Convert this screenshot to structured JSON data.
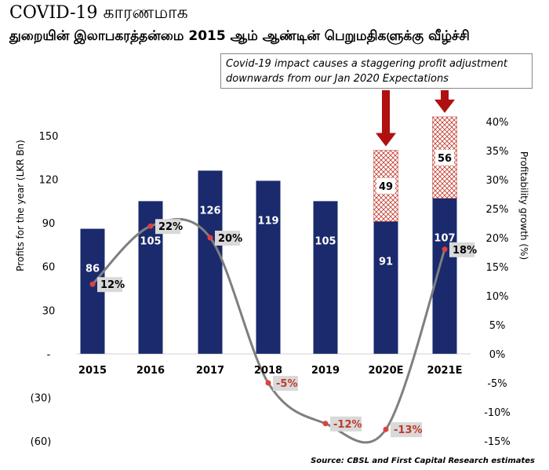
{
  "title_line1": "COVID-19 காரணமாக",
  "title_line2": "துறையின் இலாபகரத்தன்மை 2015 ஆம் ஆண்டின் பெறுமதிகளுக்கு வீழ்ச்சி",
  "callout_text": "Covid-19 impact causes a staggering profit adjustment downwards from our Jan 2020 Expectations",
  "source": "Source: CBSL and First Capital Research estimates",
  "colors": {
    "bar": "#1a2a6c",
    "hatch": "#c0392b",
    "arrow": "#b01010",
    "line": "#7f7f7f",
    "dot": "#e04040",
    "label_bg": "#d9d9d9"
  },
  "chart_data": {
    "type": "bar",
    "categories": [
      "2015",
      "2016",
      "2017",
      "2018",
      "2019",
      "2020E",
      "2021E"
    ],
    "series": [
      {
        "values": [
          86,
          105,
          126,
          119,
          105,
          91,
          107
        ]
      },
      {
        "values": [
          null,
          null,
          null,
          null,
          null,
          49,
          56
        ]
      },
      {
        "type": "line",
        "axis": "right",
        "values": [
          12,
          22,
          20,
          -5,
          -12,
          -13,
          18
        ]
      }
    ],
    "point_labels": [
      "12%",
      "22%",
      "20%",
      "-5%",
      "-12%",
      "-13%",
      "18%"
    ],
    "ylabel": "Profits for the year (LKR Bn)",
    "y2label": "Profitability growth (%)",
    "ylim": [
      -60,
      150
    ],
    "y2lim": [
      -15,
      40
    ],
    "y_ticks": [
      "(60)",
      "(30)",
      "-",
      "30",
      "60",
      "90",
      "120",
      "150"
    ],
    "y2_ticks": [
      "-15%",
      "-10%",
      "-5%",
      "0%",
      "5%",
      "10%",
      "15%",
      "20%",
      "25%",
      "30%",
      "35%",
      "40%"
    ],
    "grid": false
  }
}
